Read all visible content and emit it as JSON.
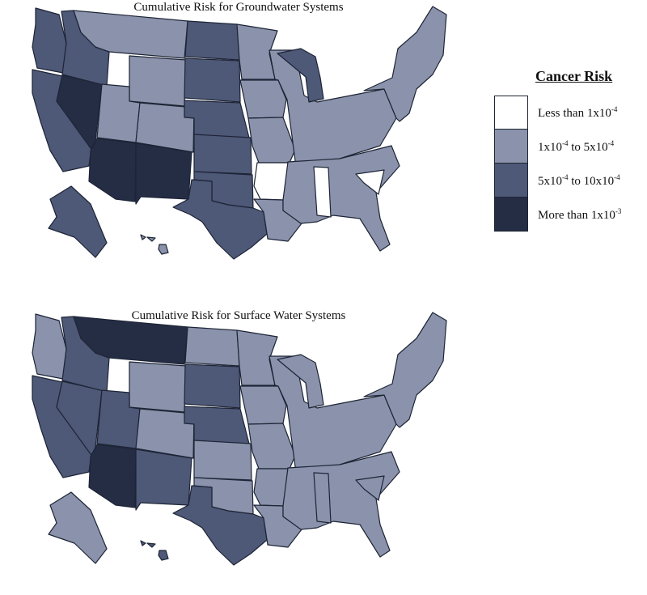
{
  "colors": {
    "less_than_1e-4": "#ffffff",
    "1e-4_to_5e-4": "#a6afc3",
    "5e-4_to_10e-4": "#5b6685",
    "more_than_1e-3": "#27304a"
  },
  "legend": {
    "title": "Cancer Risk",
    "items": [
      {
        "category": "less",
        "text": "Less than 1x10",
        "sup": "-4",
        "text2": "",
        "sup2": "",
        "color": "#ffffff"
      },
      {
        "category": "low",
        "text": "1x10",
        "sup": "-4",
        "text2": " to 5x10",
        "sup2": "-4",
        "color": "#8a93ab"
      },
      {
        "category": "mid",
        "text": "5x10",
        "sup": "-4",
        "text2": " to 10x10",
        "sup2": "-4",
        "color": "#4e5877"
      },
      {
        "category": "high",
        "text": "More than 1x10",
        "sup": "-3",
        "text2": "",
        "sup2": "",
        "color": "#252d45"
      }
    ]
  },
  "maps": [
    {
      "title": "Cumulative Risk for Groundwater Systems",
      "regions": {
        "west_coast_north": "mid",
        "west_coast_south": "mid",
        "nevada": "high",
        "idaho": "mid",
        "montana": "low",
        "wyoming": "low",
        "utah": "low",
        "colorado": "low",
        "arizona": "high",
        "new_mexico": "high",
        "north_dakota": "mid",
        "south_dakota": "mid",
        "nebraska": "mid",
        "kansas": "mid",
        "oklahoma": "mid",
        "texas": "mid",
        "minnesota": "low",
        "iowa": "low",
        "missouri": "low",
        "arkansas": "less",
        "louisiana": "low",
        "great_lakes": "low",
        "michigan": "mid",
        "south_east": "low",
        "alabama": "less",
        "south_carolina": "less",
        "north_east": "low",
        "alaska": "mid",
        "hawaii": "low"
      }
    },
    {
      "title": "Cumulative Risk for Surface Water Systems",
      "regions": {
        "west_coast_north": "low",
        "west_coast_south": "mid",
        "nevada": "mid",
        "idaho": "mid",
        "montana": "high",
        "wyoming": "low",
        "utah": "mid",
        "colorado": "low",
        "arizona": "high",
        "new_mexico": "mid",
        "north_dakota": "low",
        "south_dakota": "mid",
        "nebraska": "mid",
        "kansas": "low",
        "oklahoma": "low",
        "texas": "mid",
        "minnesota": "low",
        "iowa": "low",
        "missouri": "low",
        "arkansas": "low",
        "louisiana": "low",
        "great_lakes": "low",
        "michigan": "low",
        "south_east": "low",
        "alabama": "low",
        "south_carolina": "low",
        "north_east": "low",
        "alaska": "low",
        "hawaii": "mid"
      }
    }
  ]
}
